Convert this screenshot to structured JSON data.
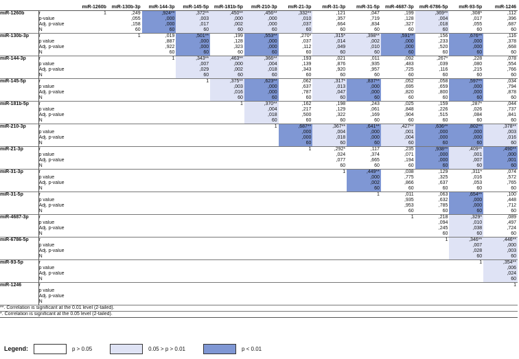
{
  "columns": [
    "miR-1260b",
    "miR-130b-3p",
    "miR-144-3p",
    "miR-145-5p",
    "miR-181b-5p",
    "miR-210-3p",
    "miR-21-3p",
    "miR-31-3p",
    "miR-31-5p",
    "miR-4687-3p",
    "miR-6786-5p",
    "miR-93-5p",
    "miR-1246"
  ],
  "rows": [
    {
      "name": "miR-1260b",
      "stats": [
        "r",
        "p-value",
        "Adj. p-value",
        "N"
      ],
      "cells": [
        {
          "col": 0,
          "v": [
            "1",
            "",
            "",
            ""
          ],
          "c": 0
        },
        {
          "col": 1,
          "v": [
            ",249",
            ",055",
            ",158",
            "60"
          ],
          "c": 0
        },
        {
          "col": 2,
          "v": [
            ",924**",
            ",000",
            ",000",
            "60"
          ],
          "c": 2
        },
        {
          "col": 3,
          "v": [
            ",372**",
            ",003",
            ",017",
            "60"
          ],
          "c": 1
        },
        {
          "col": 4,
          "v": [
            ",450**",
            ",000",
            ",002",
            "60"
          ],
          "c": 1
        },
        {
          "col": 5,
          "v": [
            ",456**",
            ",000",
            ",000",
            "60"
          ],
          "c": 1
        },
        {
          "col": 6,
          "v": [
            ",332**",
            ",010",
            ",037",
            "60"
          ],
          "c": 1
        },
        {
          "col": 7,
          "v": [
            ",121",
            ",357",
            ",664",
            "60"
          ],
          "c": 0
        },
        {
          "col": 8,
          "v": [
            ",047",
            ",719",
            ",834",
            "60"
          ],
          "c": 0
        },
        {
          "col": 9,
          "v": [
            ",199",
            ",128",
            ",327",
            "60"
          ],
          "c": 0
        },
        {
          "col": 10,
          "v": [
            ",369**",
            ",004",
            ",018",
            "60"
          ],
          "c": 1
        },
        {
          "col": 11,
          "v": [
            ",308*",
            ",017",
            ",055",
            "60"
          ],
          "c": 0
        },
        {
          "col": 12,
          "v": [
            ",112",
            ",396",
            ",687",
            "60"
          ],
          "c": 0
        }
      ]
    },
    {
      "name": "miR-130b-3p",
      "stats": [
        "r",
        "p value",
        "Adj. p-value",
        "N"
      ],
      "cells": [
        {
          "col": 1,
          "v": [
            "1",
            "",
            "",
            ""
          ],
          "c": 0
        },
        {
          "col": 2,
          "v": [
            ",019",
            ",887",
            ",922",
            "60"
          ],
          "c": 0
        },
        {
          "col": 3,
          "v": [
            ",501**",
            ",000",
            ",000",
            "60"
          ],
          "c": 2
        },
        {
          "col": 4,
          "v": [
            ",199",
            ",128",
            ",323",
            "60"
          ],
          "c": 0
        },
        {
          "col": 5,
          "v": [
            ",553**",
            ",000",
            ",000",
            "60"
          ],
          "c": 2
        },
        {
          "col": 6,
          "v": [
            ",270*",
            ",037",
            ",112",
            "60"
          ],
          "c": 0
        },
        {
          "col": 7,
          "v": [
            ",315*",
            ",014",
            ",049",
            "60"
          ],
          "c": 1
        },
        {
          "col": 8,
          "v": [
            ",398**",
            ",002",
            ",010",
            "60"
          ],
          "c": 1
        },
        {
          "col": 9,
          "v": [
            ",591**",
            ",000",
            ",000",
            "60"
          ],
          "c": 2
        },
        {
          "col": 10,
          "v": [
            ",156",
            ",233",
            ",520",
            "60"
          ],
          "c": 0
        },
        {
          "col": 11,
          "v": [
            ",676**",
            ",000",
            ",000",
            "60"
          ],
          "c": 2
        },
        {
          "col": 12,
          "v": [
            ",116",
            ",378",
            ",668",
            "60"
          ],
          "c": 0
        }
      ]
    },
    {
      "name": "miR-144-3p",
      "stats": [
        "r",
        "p value",
        "Adj. p-value",
        "N"
      ],
      "cells": [
        {
          "col": 2,
          "v": [
            "1",
            "",
            "",
            ""
          ],
          "c": 0
        },
        {
          "col": 3,
          "v": [
            ",343**",
            ",007",
            ",029",
            "60"
          ],
          "c": 1
        },
        {
          "col": 4,
          "v": [
            ",463**",
            ",000",
            ",002",
            "60"
          ],
          "c": 1
        },
        {
          "col": 5,
          "v": [
            ",366**",
            ",004",
            ",018",
            "60"
          ],
          "c": 1
        },
        {
          "col": 6,
          "v": [
            ",193",
            ",139",
            ",343",
            "60"
          ],
          "c": 0
        },
        {
          "col": 7,
          "v": [
            ",021",
            ",876",
            ",920",
            "60"
          ],
          "c": 0
        },
        {
          "col": 8,
          "v": [
            ",011",
            ",935",
            ",957",
            "60"
          ],
          "c": 0
        },
        {
          "col": 9,
          "v": [
            ",092",
            ",483",
            ",725",
            "60"
          ],
          "c": 0
        },
        {
          "col": 10,
          "v": [
            ",267*",
            ",039",
            ",116",
            "60"
          ],
          "c": 0
        },
        {
          "col": 11,
          "v": [
            ",228",
            ",080",
            ",215",
            "60"
          ],
          "c": 0
        },
        {
          "col": 12,
          "v": [
            ",078",
            ",554",
            ",766",
            "60"
          ],
          "c": 0
        }
      ]
    },
    {
      "name": "miR-145-5p",
      "stats": [
        "r",
        "p value",
        "Adj. p-value",
        "N"
      ],
      "cells": [
        {
          "col": 3,
          "v": [
            "1",
            "",
            "",
            ""
          ],
          "c": 0
        },
        {
          "col": 4,
          "v": [
            ",375**",
            ",003",
            ",016",
            "60"
          ],
          "c": 1
        },
        {
          "col": 5,
          "v": [
            ",623**",
            ",000",
            ",000",
            "60"
          ],
          "c": 2
        },
        {
          "col": 6,
          "v": [
            ",062",
            ",637",
            ",787",
            "60"
          ],
          "c": 0
        },
        {
          "col": 7,
          "v": [
            ",317*",
            ",013",
            ",047",
            "60"
          ],
          "c": 1
        },
        {
          "col": 8,
          "v": [
            ",837**",
            ",000",
            ",000",
            "60"
          ],
          "c": 2
        },
        {
          "col": 9,
          "v": [
            ",052",
            ",695",
            ",820",
            "60"
          ],
          "c": 0
        },
        {
          "col": 10,
          "v": [
            ",058",
            ",659",
            ",800",
            "60"
          ],
          "c": 0
        },
        {
          "col": 11,
          "v": [
            ",597**",
            ",000",
            ",000",
            "60"
          ],
          "c": 2
        },
        {
          "col": 12,
          "v": [
            ",034",
            ",794",
            ",878",
            "60"
          ],
          "c": 0
        }
      ]
    },
    {
      "name": "miR-181b-5p",
      "stats": [
        "r",
        "p value",
        "Adj. p-value",
        "N"
      ],
      "cells": [
        {
          "col": 4,
          "v": [
            "1",
            "",
            "",
            ""
          ],
          "c": 0
        },
        {
          "col": 5,
          "v": [
            ",370**",
            ",004",
            ",018",
            "60"
          ],
          "c": 1
        },
        {
          "col": 6,
          "v": [
            ",162",
            ",217",
            ",500",
            "60"
          ],
          "c": 0
        },
        {
          "col": 7,
          "v": [
            ",198",
            ",129",
            ",322",
            "60"
          ],
          "c": 0
        },
        {
          "col": 8,
          "v": [
            ",243",
            ",061",
            ",169",
            "60"
          ],
          "c": 0
        },
        {
          "col": 9,
          "v": [
            ",025",
            ",848",
            ",904",
            "60"
          ],
          "c": 0
        },
        {
          "col": 10,
          "v": [
            ",159",
            ",226",
            ",515",
            "60"
          ],
          "c": 0
        },
        {
          "col": 11,
          "v": [
            ",287*",
            ",026",
            ",084",
            "60"
          ],
          "c": 0
        },
        {
          "col": 12,
          "v": [
            ",044",
            ",737",
            ",841",
            "60"
          ],
          "c": 0
        }
      ]
    },
    {
      "name": "miR-210-3p",
      "stats": [
        "r",
        "p value",
        "Adj. p-value",
        "N"
      ],
      "cells": [
        {
          "col": 5,
          "v": [
            "1",
            "",
            "",
            ""
          ],
          "c": 0
        },
        {
          "col": 6,
          "v": [
            ",687**",
            ",000",
            ",000",
            "60"
          ],
          "c": 2
        },
        {
          "col": 7,
          "v": [
            ",367**",
            ",004",
            ",018",
            "60"
          ],
          "c": 1
        },
        {
          "col": 8,
          "v": [
            ",641**",
            ",000",
            ",000",
            "60"
          ],
          "c": 2
        },
        {
          "col": 9,
          "v": [
            ",427**",
            ",001",
            ",004",
            "60"
          ],
          "c": 1
        },
        {
          "col": 10,
          "v": [
            ",636**",
            ",000",
            ",000",
            "60"
          ],
          "c": 2
        },
        {
          "col": 11,
          "v": [
            ",802**",
            ",000",
            ",000",
            "60"
          ],
          "c": 2
        },
        {
          "col": 12,
          "v": [
            ",378**",
            ",003",
            ",016",
            "60"
          ],
          "c": 1
        }
      ]
    },
    {
      "name": "miR-21-3p",
      "stats": [
        "r",
        "p value",
        "Adj. p-value",
        "N"
      ],
      "cells": [
        {
          "col": 6,
          "v": [
            "1",
            "",
            "",
            ""
          ],
          "c": 0
        },
        {
          "col": 7,
          "v": [
            ",292*",
            ",024",
            ",077",
            "60"
          ],
          "c": 0
        },
        {
          "col": 8,
          "v": [
            ",117",
            ",374",
            ",665",
            "60"
          ],
          "c": 0
        },
        {
          "col": 9,
          "v": [
            ",235",
            ",071",
            ",194",
            "60"
          ],
          "c": 0
        },
        {
          "col": 10,
          "v": [
            ",938**",
            ",000",
            ",000",
            "60"
          ],
          "c": 2
        },
        {
          "col": 11,
          "v": [
            ",409**",
            ",001",
            ",007",
            "60"
          ],
          "c": 1
        },
        {
          "col": 12,
          "v": [
            ",490**",
            ",000",
            ",001",
            "60"
          ],
          "c": 2
        }
      ]
    },
    {
      "name": "miR-31-3p",
      "stats": [
        "r",
        "p value",
        "Adj. p-value",
        "N"
      ],
      "cells": [
        {
          "col": 7,
          "v": [
            "1",
            "",
            "",
            ""
          ],
          "c": 0
        },
        {
          "col": 8,
          "v": [
            ",449**",
            ",000",
            ",002",
            "60"
          ],
          "c": 2
        },
        {
          "col": 9,
          "v": [
            ",038",
            ",775",
            ",866",
            "60"
          ],
          "c": 0
        },
        {
          "col": 10,
          "v": [
            ",129",
            ",325",
            ",637",
            "60"
          ],
          "c": 0
        },
        {
          "col": 11,
          "v": [
            ",311*",
            ",016",
            ",053",
            "60"
          ],
          "c": 0
        },
        {
          "col": 12,
          "v": [
            ",074",
            ",572",
            ",765",
            "60"
          ],
          "c": 0
        }
      ]
    },
    {
      "name": "miR-31-5p",
      "stats": [
        "r",
        "p value",
        "Adj. p-value",
        "N"
      ],
      "cells": [
        {
          "col": 8,
          "v": [
            "1",
            "",
            "",
            ""
          ],
          "c": 0
        },
        {
          "col": 9,
          "v": [
            ",011",
            ",935",
            ",953",
            "60"
          ],
          "c": 0
        },
        {
          "col": 10,
          "v": [
            ",063",
            ",632",
            ",785",
            "60"
          ],
          "c": 0
        },
        {
          "col": 11,
          "v": [
            ",654**",
            ",000",
            ",000",
            "60"
          ],
          "c": 2
        },
        {
          "col": 12,
          "v": [
            ",100",
            ",448",
            ",712",
            "60"
          ],
          "c": 0
        }
      ]
    },
    {
      "name": "miR-4687-3p",
      "stats": [
        "r",
        "p value",
        "Adj. p-value",
        "N"
      ],
      "cells": [
        {
          "col": 9,
          "v": [
            "1",
            "",
            "",
            ""
          ],
          "c": 0
        },
        {
          "col": 10,
          "v": [
            ",218",
            ",094",
            ",245",
            "60"
          ],
          "c": 0
        },
        {
          "col": 11,
          "v": [
            ",329*",
            ",010",
            ",038",
            "60"
          ],
          "c": 1
        },
        {
          "col": 12,
          "v": [
            ",089",
            ",497",
            ",724",
            "60"
          ],
          "c": 0
        }
      ]
    },
    {
      "name": "miR-6786-5p",
      "stats": [
        "r",
        "p value",
        "Adj. p-value",
        "N"
      ],
      "cells": [
        {
          "col": 10,
          "v": [
            "1",
            "",
            "",
            ""
          ],
          "c": 0
        },
        {
          "col": 11,
          "v": [
            ",346**",
            ",007",
            ",028",
            "60"
          ],
          "c": 1
        },
        {
          "col": 12,
          "v": [
            ",446**",
            ",000",
            ",003",
            "60"
          ],
          "c": 1
        }
      ]
    },
    {
      "name": "miR-93-5p",
      "stats": [
        "r",
        "p value",
        "Adj. p-value",
        "N"
      ],
      "cells": [
        {
          "col": 11,
          "v": [
            "1",
            "",
            "",
            ""
          ],
          "c": 0
        },
        {
          "col": 12,
          "v": [
            ",354**",
            ",006",
            ",024",
            "60"
          ],
          "c": 1
        }
      ]
    },
    {
      "name": "miR-1246",
      "stats": [
        "r",
        "p value",
        "Adj. p-value",
        "N"
      ],
      "cells": [
        {
          "col": 12,
          "v": [
            "1",
            "",
            "",
            ""
          ],
          "c": 0
        }
      ]
    }
  ],
  "footnotes": [
    "**. Correlation is significant at the 0.01 level (2-tailed).",
    "*. Correlation is significant at the 0.05 level (2-tailed)."
  ],
  "legend": {
    "title": "Legend:",
    "items": [
      {
        "label": "p > 0.05",
        "color": "#ffffff"
      },
      {
        "label": "0.05 > p > 0.01",
        "color": "#dfe3f5"
      },
      {
        "label": "p < 0.01",
        "color": "#7f97d4"
      }
    ]
  }
}
